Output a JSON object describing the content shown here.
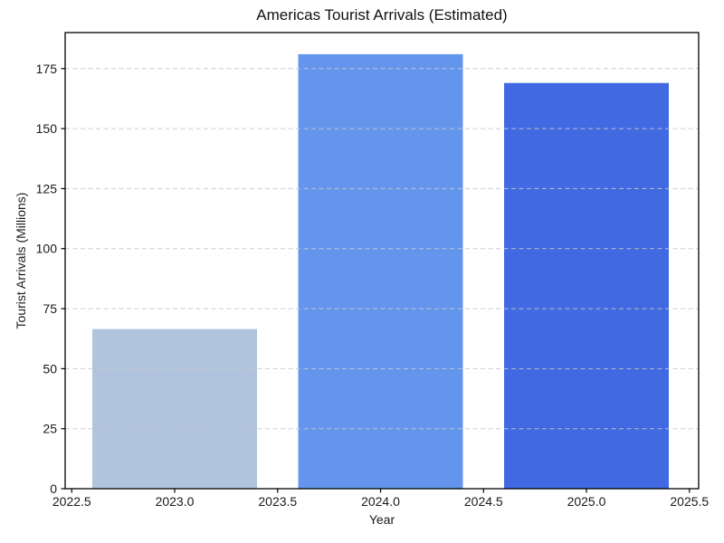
{
  "figure": {
    "background": "#ffffff"
  },
  "chart_data": {
    "type": "bar",
    "title": "Americas Tourist Arrivals (Estimated)",
    "xlabel": "Year",
    "ylabel": "Tourist Arrivals (Millions)",
    "categories": [
      2023,
      2024,
      2025
    ],
    "values": [
      66.5,
      181,
      169
    ],
    "bar_width": 0.8,
    "bar_colors": [
      "#b0c4de",
      "#6495ed",
      "#4169e1"
    ],
    "xlim": [
      2022.468,
      2025.545
    ],
    "ylim": [
      0,
      190
    ],
    "xticks": [
      2022.5,
      2023.0,
      2023.5,
      2024.0,
      2024.5,
      2025.0,
      2025.5
    ],
    "xtick_labels": [
      "2022.5",
      "2023.0",
      "2023.5",
      "2024.0",
      "2024.5",
      "2025.0",
      "2025.5"
    ],
    "yticks": [
      0,
      25,
      50,
      75,
      100,
      125,
      150,
      175
    ],
    "ytick_labels": [
      "0",
      "25",
      "50",
      "75",
      "100",
      "125",
      "150",
      "175"
    ],
    "grid": "horizontal-dashed",
    "grid_color": "#c9c9c9",
    "grid_above_bars": true,
    "legend": "none",
    "axis_color": "#000000",
    "text_color": "#1a1a1a"
  }
}
